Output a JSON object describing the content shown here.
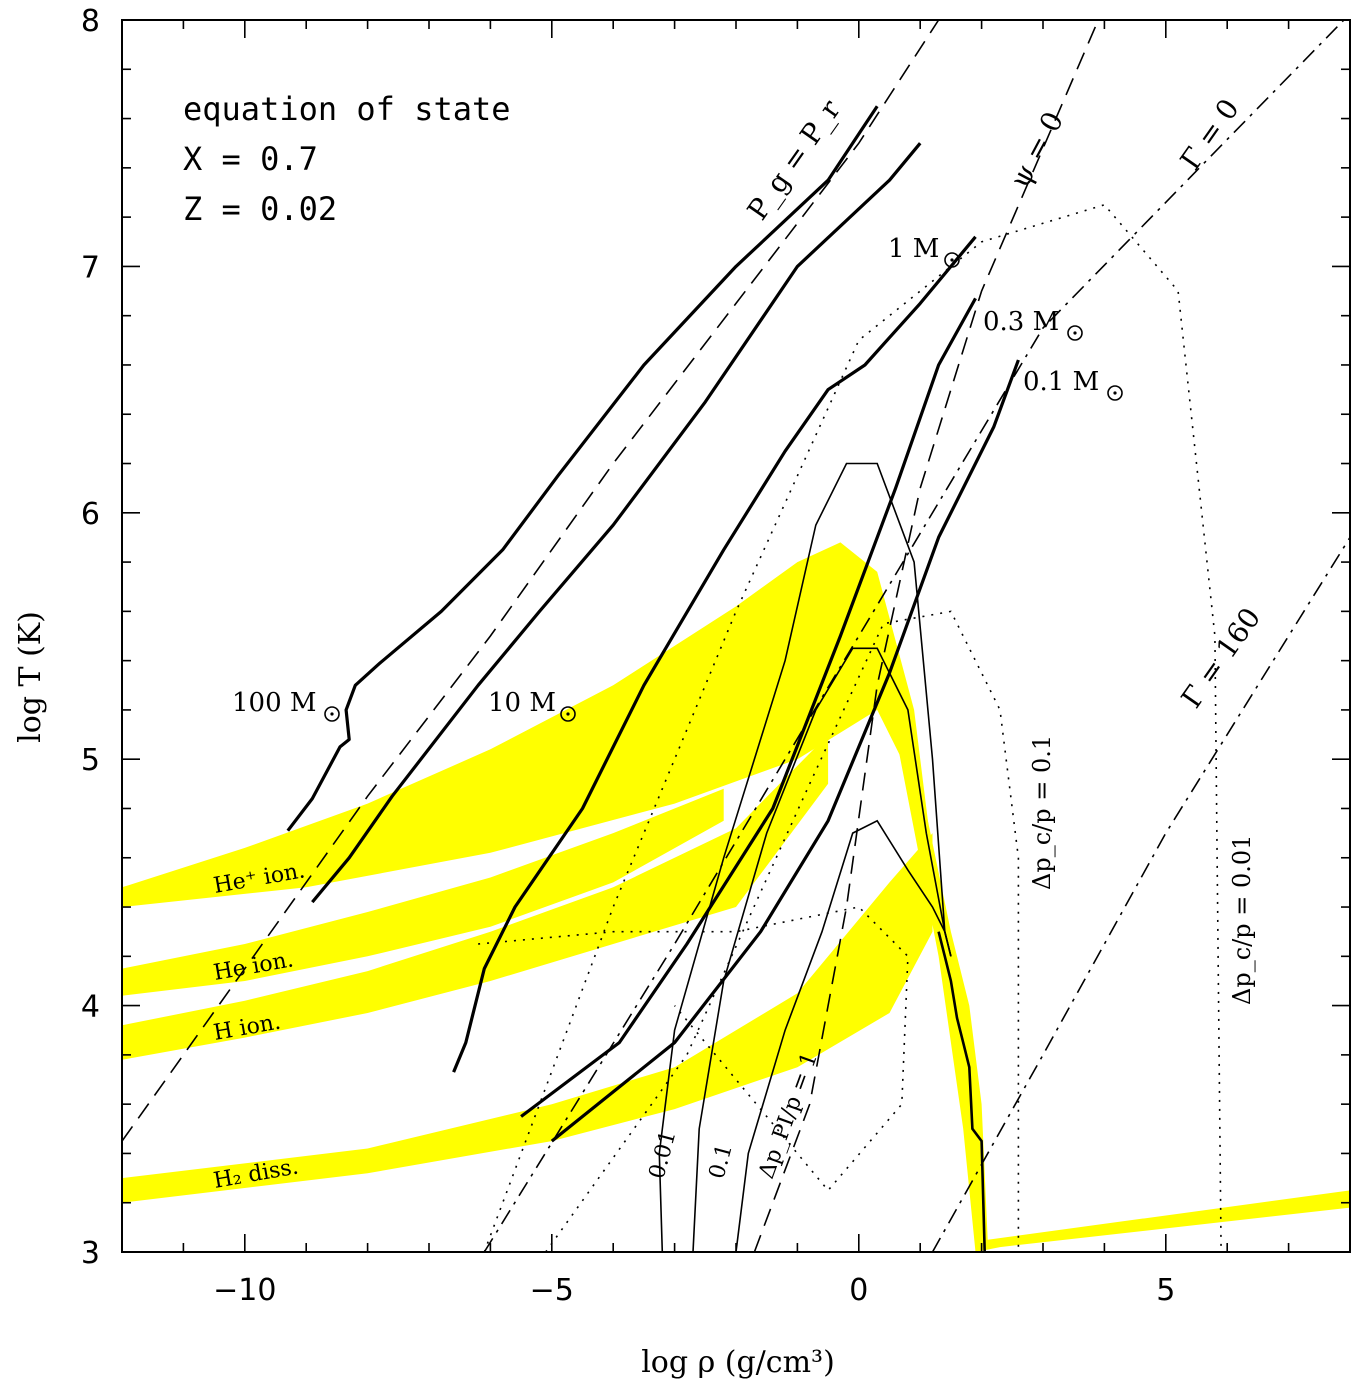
{
  "chart_data": {
    "type": "line",
    "title": "",
    "xlabel": "log ρ (g/cm³)",
    "ylabel": "log T (K)",
    "xlim": [
      -12,
      8
    ],
    "ylim": [
      3,
      8
    ],
    "x_ticks": [
      {
        "value": -10,
        "label": "−10"
      },
      {
        "value": -5,
        "label": "−5"
      },
      {
        "value": 0,
        "label": "0"
      },
      {
        "value": 5,
        "label": "5"
      }
    ],
    "y_ticks": [
      {
        "value": 3,
        "label": "3"
      },
      {
        "value": 4,
        "label": "4"
      },
      {
        "value": 5,
        "label": "5"
      },
      {
        "value": 6,
        "label": "6"
      },
      {
        "value": 7,
        "label": "7"
      },
      {
        "value": 8,
        "label": "8"
      }
    ],
    "info_lines": [
      "equation of state",
      "X = 0.7",
      "Z = 0.02"
    ],
    "colors": {
      "ionization_bands": "#ffff00",
      "lines": "#000000"
    },
    "ionization_bands": [
      {
        "name": "He⁺ ion.",
        "upper": [
          [
            -12,
            4.48
          ],
          [
            -10,
            4.64
          ],
          [
            -8,
            4.82
          ],
          [
            -6,
            5.04
          ],
          [
            -4,
            5.3
          ],
          [
            -2,
            5.62
          ],
          [
            -1,
            5.8
          ],
          [
            -0.3,
            5.88
          ],
          [
            0.3,
            5.76
          ],
          [
            0.9,
            5.2
          ],
          [
            1.2,
            4.6
          ]
        ],
        "lower": [
          [
            1.2,
            4.6
          ],
          [
            0.9,
            4.9
          ],
          [
            0.3,
            5.2
          ],
          [
            -1,
            5.0
          ],
          [
            -3,
            4.82
          ],
          [
            -6,
            4.62
          ],
          [
            -9,
            4.48
          ],
          [
            -12,
            4.4
          ]
        ]
      },
      {
        "name": "He ion.",
        "upper": [
          [
            -12,
            4.15
          ],
          [
            -10,
            4.25
          ],
          [
            -8,
            4.38
          ],
          [
            -6,
            4.52
          ],
          [
            -4,
            4.7
          ],
          [
            -2.2,
            4.88
          ]
        ],
        "lower": [
          [
            -2.2,
            4.75
          ],
          [
            -4,
            4.5
          ],
          [
            -6,
            4.32
          ],
          [
            -8,
            4.2
          ],
          [
            -10,
            4.1
          ],
          [
            -12,
            4.04
          ]
        ]
      },
      {
        "name": "H ion.",
        "upper": [
          [
            -12,
            3.92
          ],
          [
            -10,
            4.02
          ],
          [
            -8,
            4.14
          ],
          [
            -6,
            4.3
          ],
          [
            -4,
            4.48
          ],
          [
            -2,
            4.72
          ],
          [
            -0.5,
            5.1
          ]
        ],
        "lower": [
          [
            -0.5,
            4.9
          ],
          [
            -2,
            4.4
          ],
          [
            -4,
            4.25
          ],
          [
            -6,
            4.1
          ],
          [
            -8,
            3.97
          ],
          [
            -10,
            3.87
          ],
          [
            -12,
            3.78
          ]
        ]
      },
      {
        "name": "H₂ diss.",
        "upper": [
          [
            -12,
            3.3
          ],
          [
            -8,
            3.42
          ],
          [
            -5,
            3.6
          ],
          [
            -3,
            3.75
          ],
          [
            -1,
            4.05
          ],
          [
            0.5,
            4.5
          ],
          [
            1.2,
            4.7
          ]
        ],
        "lower": [
          [
            1.2,
            4.3
          ],
          [
            0.5,
            3.97
          ],
          [
            -1,
            3.75
          ],
          [
            -3,
            3.58
          ],
          [
            -5,
            3.45
          ],
          [
            -8,
            3.32
          ],
          [
            -12,
            3.2
          ]
        ]
      },
      {
        "name": "",
        "upper": [
          [
            -0.5,
            5.7
          ],
          [
            1.0,
            4.9
          ],
          [
            1.5,
            4.3
          ],
          [
            1.8,
            4.0
          ],
          [
            2.0,
            3.6
          ],
          [
            2.1,
            3.05
          ],
          [
            8,
            3.25
          ]
        ],
        "lower": [
          [
            8,
            3.18
          ],
          [
            2.3,
            3.02
          ],
          [
            1.9,
            3.0
          ],
          [
            1.7,
            3.5
          ],
          [
            1.3,
            4.2
          ],
          [
            0.6,
            5.1
          ],
          [
            -0.5,
            5.6
          ]
        ]
      }
    ],
    "reference_lines": [
      {
        "label": "P_g = P_r",
        "style": "dashed",
        "points": [
          [
            -12,
            3.45
          ],
          [
            -8,
            4.85
          ],
          [
            -6,
            5.5
          ],
          [
            -4,
            6.2
          ],
          [
            -2,
            6.85
          ],
          [
            0,
            7.5
          ],
          [
            1.3,
            8
          ]
        ]
      },
      {
        "label": "ψ = 0",
        "style": "dashed",
        "points": [
          [
            -1.7,
            3.0
          ],
          [
            -0.8,
            3.6
          ],
          [
            -0.2,
            4.4
          ],
          [
            0.3,
            5.3
          ],
          [
            1,
            6.1
          ],
          [
            2,
            6.9
          ],
          [
            3.9,
            8
          ]
        ]
      },
      {
        "label": "Γ = 0",
        "style": "dashdot",
        "points": [
          [
            -6.1,
            3
          ],
          [
            -3,
            4.25
          ],
          [
            0,
            5.5
          ],
          [
            3,
            6.75
          ],
          [
            7.9,
            8
          ]
        ]
      },
      {
        "label": "Γ = 160",
        "style": "dashdot",
        "points": [
          [
            1.2,
            3
          ],
          [
            3,
            3.8
          ],
          [
            5,
            4.7
          ],
          [
            8,
            5.9
          ]
        ]
      },
      {
        "label": "Δp_c/p = 0.1",
        "style": "dotted",
        "points": [
          [
            -5.1,
            3
          ],
          [
            -2.8,
            3.8
          ],
          [
            -0.8,
            4.9
          ],
          [
            0.4,
            5.55
          ],
          [
            1.5,
            5.6
          ],
          [
            2.3,
            5.2
          ],
          [
            2.6,
            4.6
          ],
          [
            2.6,
            3
          ]
        ]
      },
      {
        "label": "Δp_c/p = 0.01",
        "style": "dotted",
        "points": [
          [
            -6.1,
            3
          ],
          [
            -4,
            4.4
          ],
          [
            -2,
            5.6
          ],
          [
            0,
            6.7
          ],
          [
            2,
            7.1
          ],
          [
            4,
            7.25
          ],
          [
            5.2,
            6.9
          ],
          [
            5.8,
            5.5
          ],
          [
            5.9,
            3
          ]
        ]
      },
      {
        "label": "",
        "style": "dotted",
        "points": [
          [
            -6.2,
            4.25
          ],
          [
            -4,
            4.3
          ],
          [
            -2,
            4.3
          ],
          [
            0,
            4.4
          ],
          [
            0.8,
            4.2
          ],
          [
            0.7,
            3.6
          ],
          [
            -0.5,
            3.25
          ],
          [
            -1.5,
            3.55
          ],
          [
            -3,
            4.0
          ]
        ]
      }
    ],
    "model_tracks": [
      {
        "name": "100 M☉",
        "points": [
          [
            -9.3,
            4.71
          ],
          [
            -8.9,
            4.84
          ],
          [
            -8.45,
            5.05
          ],
          [
            -8.3,
            5.08
          ],
          [
            -8.35,
            5.2
          ],
          [
            -8.2,
            5.3
          ],
          [
            -7.8,
            5.39
          ],
          [
            -6.8,
            5.6
          ],
          [
            -5.8,
            5.85
          ],
          [
            -4.9,
            6.15
          ],
          [
            -3.5,
            6.6
          ],
          [
            -2,
            7.0
          ],
          [
            -0.5,
            7.35
          ],
          [
            0.3,
            7.65
          ]
        ]
      },
      {
        "name": "10 M☉",
        "points": [
          [
            -8.9,
            4.42
          ],
          [
            -8.3,
            4.6
          ],
          [
            -7.6,
            4.85
          ],
          [
            -6.2,
            5.3
          ],
          [
            -5.2,
            5.6
          ],
          [
            -4,
            5.95
          ],
          [
            -2.5,
            6.45
          ],
          [
            -1,
            7.0
          ],
          [
            0.5,
            7.35
          ],
          [
            1.0,
            7.5
          ]
        ]
      },
      {
        "name": "1 M☉",
        "points": [
          [
            -6.6,
            3.73
          ],
          [
            -6.4,
            3.85
          ],
          [
            -6.1,
            4.15
          ],
          [
            -5.6,
            4.4
          ],
          [
            -4.5,
            4.8
          ],
          [
            -3.5,
            5.3
          ],
          [
            -2.2,
            5.85
          ],
          [
            -1.2,
            6.25
          ],
          [
            -0.5,
            6.5
          ],
          [
            0.1,
            6.6
          ],
          [
            1,
            6.85
          ],
          [
            1.9,
            7.12
          ]
        ]
      },
      {
        "name": "0.3 M☉",
        "points": [
          [
            -5.5,
            3.55
          ],
          [
            -3.9,
            3.85
          ],
          [
            -2.8,
            4.25
          ],
          [
            -1.4,
            4.8
          ],
          [
            -0.3,
            5.5
          ],
          [
            0.6,
            6.1
          ],
          [
            1.3,
            6.6
          ],
          [
            1.9,
            6.87
          ]
        ]
      },
      {
        "name": "0.1 M☉",
        "points": [
          [
            -5.0,
            3.45
          ],
          [
            -3,
            3.85
          ],
          [
            -1.6,
            4.3
          ],
          [
            -0.5,
            4.75
          ],
          [
            0.5,
            5.35
          ],
          [
            1.3,
            5.9
          ],
          [
            2.2,
            6.35
          ],
          [
            2.6,
            6.62
          ]
        ]
      }
    ],
    "pressure_ionization_lines": [
      {
        "label": "0.01",
        "points": [
          [
            -3.2,
            3
          ],
          [
            -3.25,
            3.4
          ],
          [
            -3.0,
            3.9
          ],
          [
            -2.2,
            4.6
          ],
          [
            -1.2,
            5.4
          ],
          [
            -0.7,
            5.95
          ],
          [
            -0.2,
            6.2
          ],
          [
            0.3,
            6.2
          ],
          [
            0.9,
            5.8
          ],
          [
            1.2,
            5.0
          ],
          [
            1.4,
            4.3
          ],
          [
            1.5,
            4.2
          ]
        ]
      },
      {
        "label": "0.1",
        "points": [
          [
            -2.7,
            3
          ],
          [
            -2.6,
            3.5
          ],
          [
            -2.2,
            4.1
          ],
          [
            -1.5,
            4.7
          ],
          [
            -0.7,
            5.2
          ],
          [
            -0.1,
            5.45
          ],
          [
            0.3,
            5.45
          ],
          [
            0.8,
            5.2
          ],
          [
            1.1,
            4.7
          ],
          [
            1.4,
            4.3
          ],
          [
            1.5,
            4.2
          ]
        ]
      },
      {
        "label": "Δp_PI/p = 1",
        "points": [
          [
            -2.0,
            3
          ],
          [
            -1.8,
            3.4
          ],
          [
            -1.2,
            3.9
          ],
          [
            -0.6,
            4.3
          ],
          [
            -0.1,
            4.7
          ],
          [
            0.3,
            4.75
          ],
          [
            0.8,
            4.55
          ],
          [
            1.2,
            4.4
          ],
          [
            1.4,
            4.3
          ],
          [
            1.5,
            4.2
          ]
        ]
      }
    ],
    "eos_boundary": {
      "label": "",
      "points": [
        [
          1.3,
          4.3
        ],
        [
          1.4,
          4.2
        ],
        [
          1.5,
          4.1
        ],
        [
          1.6,
          3.95
        ],
        [
          1.7,
          3.85
        ],
        [
          1.8,
          3.75
        ],
        [
          1.85,
          3.5
        ],
        [
          2.0,
          3.45
        ],
        [
          2.05,
          3.0
        ]
      ]
    }
  },
  "labels": {
    "info": [
      "equation of state",
      "X = 0.7",
      "Z = 0.02"
    ],
    "band_he_plus": "He⁺ ion.",
    "band_he": "He ion.",
    "band_h": "H ion.",
    "band_h2": "H₂ diss.",
    "track_100": "100 M",
    "track_10": "10 M",
    "track_1": "1 M",
    "track_03": "0.3 M",
    "track_01": "0.1 M",
    "ref_pgpr": "P_g = P_r",
    "ref_psi": "ψ = 0",
    "ref_gamma0": "Γ = 0",
    "ref_gamma160": "Γ = 160",
    "ref_dpc01": "Δp_c/p = 0.1",
    "ref_dpc001": "Δp_c/p = 0.01",
    "pi_001": "0.01",
    "pi_01": "0.1",
    "pi_1": "Δp_PI/p = 1"
  }
}
